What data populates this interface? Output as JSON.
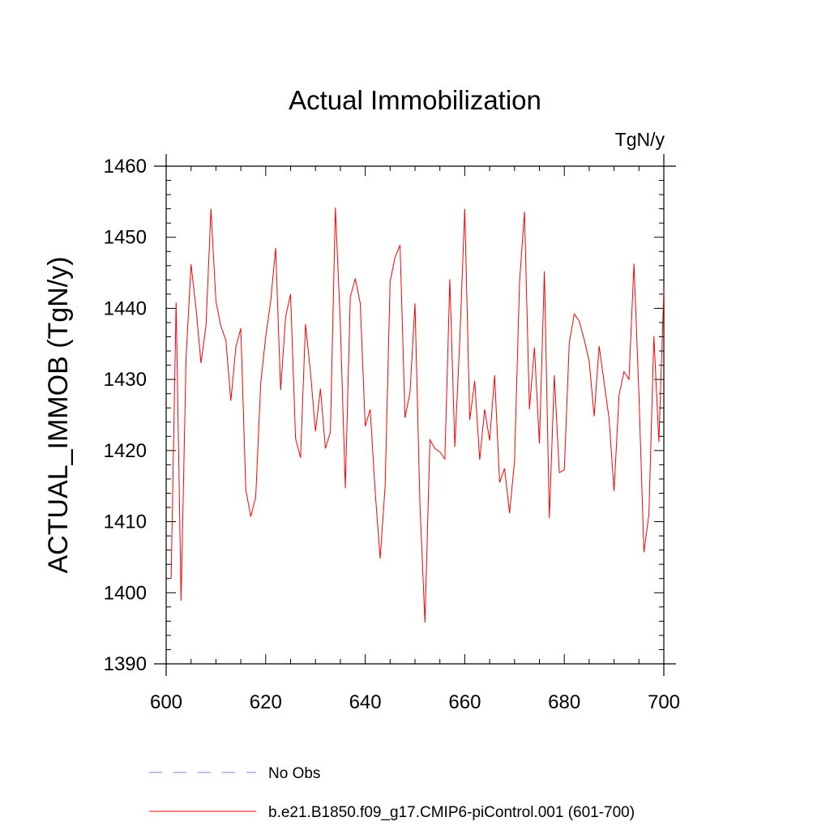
{
  "chart_data": {
    "type": "line",
    "title": "Actual Immobilization",
    "units_label": "TgN/y",
    "xlabel": "",
    "ylabel": "ACTUAL_IMMOB  (TgN/y)",
    "xlim": [
      600,
      700
    ],
    "ylim": [
      1390,
      1460
    ],
    "x_ticks": [
      600,
      620,
      640,
      660,
      680,
      700
    ],
    "y_ticks": [
      1390,
      1400,
      1410,
      1420,
      1430,
      1440,
      1450,
      1460
    ],
    "x_minor_step": 5,
    "y_minor_step": 2,
    "grid": false,
    "series": [
      {
        "name": "b.e21.B1850.f09_g17.CMIP6-piControl.001 (601-700)",
        "color": "#ff0000",
        "style": "solid",
        "x": [
          601,
          602,
          603,
          604,
          605,
          606,
          607,
          608,
          609,
          610,
          611,
          612,
          613,
          614,
          615,
          616,
          617,
          618,
          619,
          620,
          621,
          622,
          623,
          624,
          625,
          626,
          627,
          628,
          629,
          630,
          631,
          632,
          633,
          634,
          635,
          636,
          637,
          638,
          639,
          640,
          641,
          642,
          643,
          644,
          645,
          646,
          647,
          648,
          649,
          650,
          651,
          652,
          653,
          654,
          655,
          656,
          657,
          658,
          659,
          660,
          661,
          662,
          663,
          664,
          665,
          666,
          667,
          668,
          669,
          670,
          671,
          672,
          673,
          674,
          675,
          676,
          677,
          678,
          679,
          680,
          681,
          682,
          683,
          684,
          685,
          686,
          687,
          688,
          689,
          690,
          691,
          692,
          693,
          694,
          695,
          696,
          697,
          698,
          699,
          700
        ],
        "values": [
          1402,
          1440.8,
          1398.9,
          1433,
          1446.2,
          1440,
          1432.3,
          1437.5,
          1454,
          1441,
          1437.5,
          1435.5,
          1427,
          1434.5,
          1437.2,
          1414.5,
          1410.7,
          1413.5,
          1429.5,
          1436,
          1441,
          1448.5,
          1428.5,
          1438.8,
          1442,
          1421.7,
          1419,
          1437.8,
          1431,
          1422.7,
          1428.7,
          1420.3,
          1422.6,
          1454.2,
          1437.8,
          1414.7,
          1441.6,
          1444.2,
          1440.7,
          1423.4,
          1425.8,
          1414.2,
          1404.8,
          1415,
          1443.8,
          1447.2,
          1448.9,
          1424.6,
          1428.2,
          1440.7,
          1412.3,
          1395.8,
          1421.5,
          1420.3,
          1419.8,
          1418.8,
          1444.1,
          1420.5,
          1435.5,
          1454,
          1424.3,
          1429.8,
          1418.7,
          1425.8,
          1421.4,
          1430.6,
          1415.5,
          1417.5,
          1411.2,
          1418.5,
          1443.6,
          1453.6,
          1425.8,
          1434.5,
          1421,
          1445.2,
          1410.5,
          1430.6,
          1416.9,
          1417.3,
          1435.2,
          1439.2,
          1438.2,
          1435.6,
          1432.6,
          1424.8,
          1434.7,
          1429.6,
          1424.5,
          1414.3,
          1427.8,
          1431.1,
          1430,
          1446.3,
          1427.8,
          1405.7,
          1411,
          1436.1,
          1421.2,
          1442.6
        ]
      }
    ],
    "legend": [
      {
        "label": "No Obs",
        "color": "#8080c0",
        "style": "dashed"
      },
      {
        "label": "b.e21.B1850.f09_g17.CMIP6-piControl.001 (601-700)",
        "color": "#ff0000",
        "style": "solid"
      }
    ]
  }
}
